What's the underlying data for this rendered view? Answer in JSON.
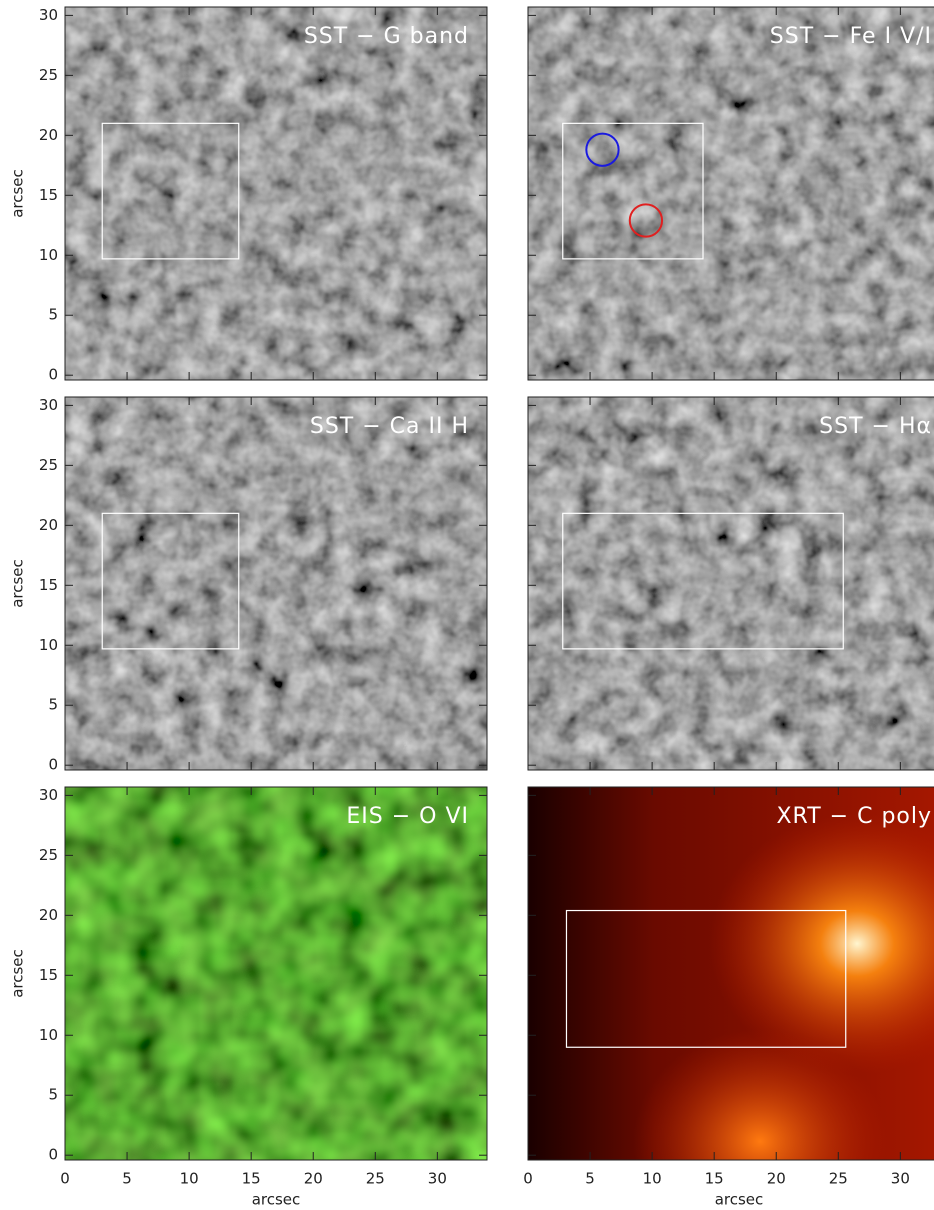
{
  "chart_data": [
    {
      "type": "image",
      "title": "SST − G band",
      "colormap": "gray",
      "xlim": [
        0,
        34
      ],
      "ylim": [
        -0.4,
        30.7
      ],
      "xticks": [
        0,
        5,
        10,
        15,
        20,
        25,
        30
      ],
      "yticks": [
        0,
        5,
        10,
        15,
        20,
        25,
        30
      ],
      "ylabel": "arcsec",
      "ytick_labels": true,
      "xtick_labels": false,
      "box": {
        "x": [
          3,
          14
        ],
        "y": [
          9.7,
          21
        ]
      }
    },
    {
      "type": "image",
      "title": "SST − Fe I V/I",
      "colormap": "gray",
      "xlim": [
        0,
        34
      ],
      "ylim": [
        -0.4,
        30.7
      ],
      "xticks": [
        0,
        5,
        10,
        15,
        20,
        25,
        30
      ],
      "yticks": [
        0,
        5,
        10,
        15,
        20,
        25,
        30
      ],
      "ytick_labels": false,
      "xtick_labels": false,
      "box": {
        "x": [
          2.8,
          14.1
        ],
        "y": [
          9.7,
          21
        ]
      },
      "circles": [
        {
          "x": 6,
          "y": 18.8,
          "r": 1.3,
          "color": "#1a1adf"
        },
        {
          "x": 9.5,
          "y": 12.9,
          "r": 1.3,
          "color": "#e02020"
        }
      ]
    },
    {
      "type": "image",
      "title": "SST − Ca II H",
      "colormap": "gray",
      "xlim": [
        0,
        34
      ],
      "ylim": [
        -0.4,
        30.7
      ],
      "xticks": [
        0,
        5,
        10,
        15,
        20,
        25,
        30
      ],
      "yticks": [
        0,
        5,
        10,
        15,
        20,
        25,
        30
      ],
      "ylabel": "arcsec",
      "ytick_labels": true,
      "xtick_labels": false,
      "box": {
        "x": [
          3,
          14
        ],
        "y": [
          9.7,
          21
        ]
      }
    },
    {
      "type": "image",
      "title": "SST − Hα",
      "colormap": "gray",
      "xlim": [
        0,
        34
      ],
      "ylim": [
        -0.4,
        30.7
      ],
      "xticks": [
        0,
        5,
        10,
        15,
        20,
        25,
        30
      ],
      "yticks": [
        0,
        5,
        10,
        15,
        20,
        25,
        30
      ],
      "ytick_labels": false,
      "xtick_labels": false,
      "box": {
        "x": [
          2.8,
          25.4
        ],
        "y": [
          9.7,
          21
        ]
      }
    },
    {
      "type": "image",
      "title": "EIS − O VI",
      "colormap": "green",
      "xlim": [
        0,
        34
      ],
      "ylim": [
        -0.4,
        30.7
      ],
      "xticks": [
        0,
        5,
        10,
        15,
        20,
        25,
        30
      ],
      "yticks": [
        0,
        5,
        10,
        15,
        20,
        25,
        30
      ],
      "xlabel": "arcsec",
      "ylabel": "arcsec",
      "ytick_labels": true,
      "xtick_labels": true
    },
    {
      "type": "image",
      "title": "XRT − C poly",
      "colormap": "hot",
      "xlim": [
        0,
        34
      ],
      "ylim": [
        -0.4,
        30.7
      ],
      "xticks": [
        0,
        5,
        10,
        15,
        20,
        25,
        30
      ],
      "yticks": [
        0,
        5,
        10,
        15,
        20,
        25,
        30
      ],
      "xlabel": "arcsec",
      "ytick_labels": false,
      "xtick_labels": true,
      "box": {
        "x": [
          3.1,
          25.6
        ],
        "y": [
          9.0,
          20.4
        ]
      }
    }
  ]
}
